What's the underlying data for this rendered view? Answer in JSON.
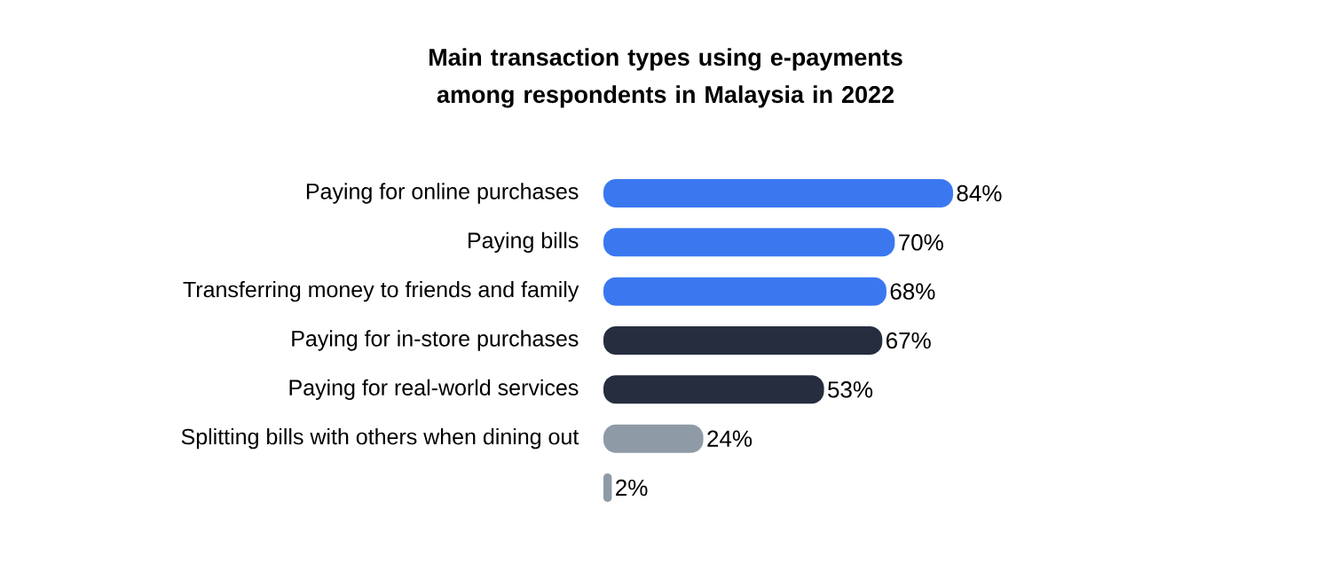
{
  "chart_data": {
    "type": "bar",
    "orientation": "horizontal",
    "title": "Main transaction types using e-payments among respondents in Malaysia in 2022",
    "categories": [
      "Paying for online purchases",
      "Paying bills",
      "Transferring money to friends and family",
      "Paying for in-store purchases",
      "Paying for real-world services",
      "Splitting bills with others when dining out",
      null
    ],
    "values": [
      84,
      70,
      68,
      67,
      53,
      24,
      2
    ],
    "colors": [
      "#3b78f0",
      "#3b78f0",
      "#3b78f0",
      "#252d3f",
      "#252d3f",
      "#8e9aa6",
      "#8e9aa6"
    ],
    "value_labels": [
      "84%",
      "70%",
      "68%",
      "67%",
      "53%",
      "24%",
      "2%"
    ],
    "data_labels": true
  }
}
